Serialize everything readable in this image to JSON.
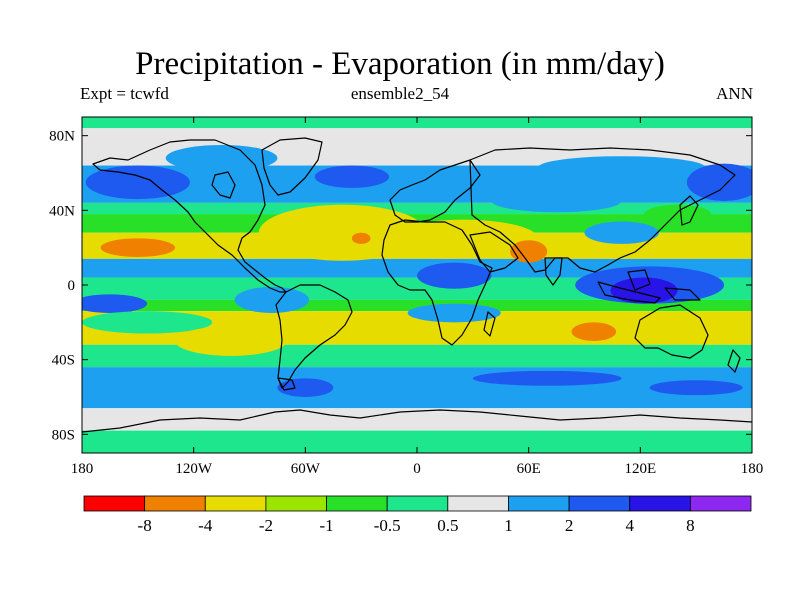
{
  "title": "Precipitation - Evaporation (in mm/day)",
  "subtitle_left": "Expt = tcwfd",
  "subtitle_center": "ensemble2_54",
  "subtitle_right": "ANN",
  "map": {
    "lon_range": [
      -180,
      180
    ],
    "lat_range": [
      -90,
      90
    ],
    "lat_ticks": [
      {
        "value": 80,
        "label": "80N"
      },
      {
        "value": 40,
        "label": "40N"
      },
      {
        "value": 0,
        "label": "0"
      },
      {
        "value": -40,
        "label": "40S"
      },
      {
        "value": -80,
        "label": "80S"
      }
    ],
    "lon_ticks": [
      {
        "value": -180,
        "label": "180"
      },
      {
        "value": -120,
        "label": "120W"
      },
      {
        "value": -60,
        "label": "60W"
      },
      {
        "value": 0,
        "label": "0"
      },
      {
        "value": 60,
        "label": "60E"
      },
      {
        "value": 120,
        "label": "120E"
      },
      {
        "value": 180,
        "label": "180"
      }
    ]
  },
  "colorbar": {
    "colors": [
      "#ff0000",
      "#f08000",
      "#e6dc00",
      "#9ae600",
      "#28e028",
      "#1ee68c",
      "#e6e6e6",
      "#1ea0f0",
      "#1e5af0",
      "#2814e6",
      "#8c28f0"
    ],
    "labels": [
      "-8",
      "-4",
      "-2",
      "-1",
      "-0.5",
      "0.5",
      "1",
      "2",
      "4",
      "8"
    ]
  },
  "bands": [
    {
      "lat": [
        90,
        84
      ],
      "color": "#1ee68c"
    },
    {
      "lat": [
        84,
        64
      ],
      "color": "#e6e6e6"
    },
    {
      "lat": [
        64,
        44
      ],
      "color": "#1ea0f0"
    },
    {
      "lat": [
        44,
        38
      ],
      "color": "#1ee68c"
    },
    {
      "lat": [
        38,
        28
      ],
      "color": "#28e028"
    },
    {
      "lat": [
        28,
        14
      ],
      "color": "#e6dc00"
    },
    {
      "lat": [
        14,
        4
      ],
      "color": "#1ea0f0"
    },
    {
      "lat": [
        4,
        -8
      ],
      "color": "#1ee68c"
    },
    {
      "lat": [
        -8,
        -14
      ],
      "color": "#28e028"
    },
    {
      "lat": [
        -14,
        -32
      ],
      "color": "#e6dc00"
    },
    {
      "lat": [
        -32,
        -44
      ],
      "color": "#1ee68c"
    },
    {
      "lat": [
        -44,
        -66
      ],
      "color": "#1ea0f0"
    },
    {
      "lat": [
        -66,
        -78
      ],
      "color": "#e6e6e6"
    },
    {
      "lat": [
        -78,
        -90
      ],
      "color": "#1ee68c"
    }
  ],
  "blobs": [
    {
      "lon": -150,
      "lat": 55,
      "rlon": 28,
      "rlat": 9,
      "color": "#1e5af0"
    },
    {
      "lon": -35,
      "lat": 58,
      "rlon": 20,
      "rlat": 6,
      "color": "#1e5af0"
    },
    {
      "lon": -105,
      "lat": 68,
      "rlon": 30,
      "rlat": 7,
      "color": "#1ea0f0"
    },
    {
      "lon": 110,
      "lat": 63,
      "rlon": 45,
      "rlat": 6,
      "color": "#1ea0f0"
    },
    {
      "lon": 165,
      "lat": 55,
      "rlon": 20,
      "rlat": 10,
      "color": "#1e5af0"
    },
    {
      "lon": 75,
      "lat": 45,
      "rlon": 35,
      "rlat": 6,
      "color": "#1ea0f0"
    },
    {
      "lon": -150,
      "lat": 20,
      "rlon": 20,
      "rlat": 5,
      "color": "#f08000"
    },
    {
      "lon": -40,
      "lat": 28,
      "rlon": 45,
      "rlat": 15,
      "color": "#e6dc00"
    },
    {
      "lon": -30,
      "lat": 25,
      "rlon": 5,
      "rlat": 3,
      "color": "#f08000"
    },
    {
      "lon": 25,
      "lat": 25,
      "rlon": 40,
      "rlat": 10,
      "color": "#e6dc00"
    },
    {
      "lon": 60,
      "lat": 18,
      "rlon": 10,
      "rlat": 6,
      "color": "#f08000"
    },
    {
      "lon": 110,
      "lat": 28,
      "rlon": 20,
      "rlat": 6,
      "color": "#1ea0f0"
    },
    {
      "lon": 140,
      "lat": 38,
      "rlon": 18,
      "rlat": 5,
      "color": "#28e028"
    },
    {
      "lon": 20,
      "lat": 5,
      "rlon": 20,
      "rlat": 7,
      "color": "#1e5af0"
    },
    {
      "lon": 125,
      "lat": 0,
      "rlon": 40,
      "rlat": 10,
      "color": "#1e5af0"
    },
    {
      "lon": 122,
      "lat": -3,
      "rlon": 18,
      "rlat": 7,
      "color": "#2814e6"
    },
    {
      "lon": -165,
      "lat": -10,
      "rlon": 20,
      "rlat": 5,
      "color": "#1e5af0"
    },
    {
      "lon": -78,
      "lat": -8,
      "rlon": 20,
      "rlat": 7,
      "color": "#1ea0f0"
    },
    {
      "lon": -145,
      "lat": -20,
      "rlon": 35,
      "rlat": 6,
      "color": "#1ee68c"
    },
    {
      "lon": 20,
      "lat": -15,
      "rlon": 25,
      "rlat": 5,
      "color": "#1ea0f0"
    },
    {
      "lon": 95,
      "lat": -25,
      "rlon": 12,
      "rlat": 5,
      "color": "#f08000"
    },
    {
      "lon": -100,
      "lat": -30,
      "rlon": 30,
      "rlat": 8,
      "color": "#e6dc00"
    },
    {
      "lon": 70,
      "lat": -50,
      "rlon": 40,
      "rlat": 4,
      "color": "#1e5af0"
    },
    {
      "lon": -60,
      "lat": -55,
      "rlon": 15,
      "rlat": 5,
      "color": "#1e5af0"
    },
    {
      "lon": 150,
      "lat": -55,
      "rlon": 25,
      "rlat": 4,
      "color": "#1e5af0"
    }
  ]
}
